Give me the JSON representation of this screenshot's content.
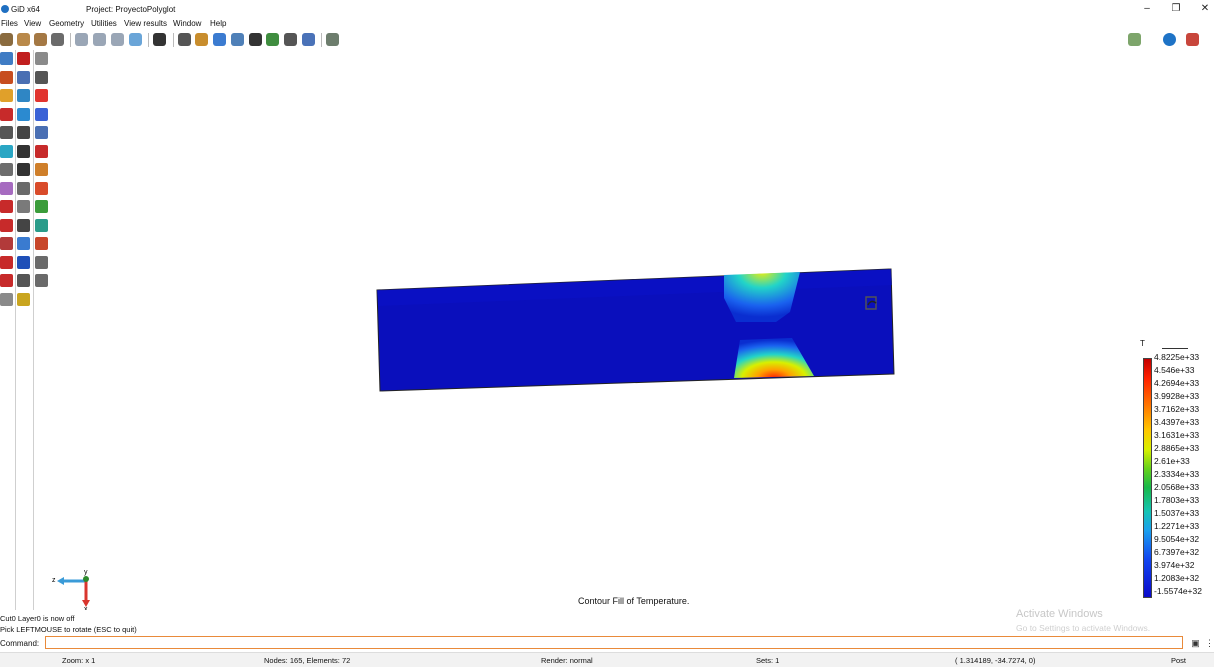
{
  "window": {
    "app_title": "GiD x64",
    "project_title": "Project: ProyectoPolyglot",
    "controls": [
      "–",
      "❐",
      "✕"
    ]
  },
  "menu": [
    "Files",
    "View",
    "Geometry",
    "Utilities",
    "View results",
    "Window",
    "Help"
  ],
  "toolbar_icons": [
    {
      "name": "geometry-view-icon",
      "color": "#8a6b3f"
    },
    {
      "name": "mesh-view-icon",
      "color": "#b9894a"
    },
    {
      "name": "postprocess-view-icon",
      "color": "#a47844"
    },
    {
      "name": "render-icon",
      "color": "#6b6b6b"
    },
    {
      "name": "rotate-trackball-icon",
      "color": "#9aa6b6"
    },
    {
      "name": "rotate-screen-icon",
      "color": "#9aa6b6"
    },
    {
      "name": "pan-icon",
      "color": "#9aa6b6"
    },
    {
      "name": "zoom-frame-icon",
      "color": "#6aa5d8"
    },
    {
      "name": "screenshot-icon",
      "color": "#333333"
    },
    {
      "name": "layers-icon",
      "color": "#555555"
    },
    {
      "name": "contour-icon",
      "color": "#c88d2d"
    },
    {
      "name": "color-map-icon",
      "color": "#3b7bd0"
    },
    {
      "name": "graph-icon",
      "color": "#4f80b8"
    },
    {
      "name": "animation-icon",
      "color": "#333333"
    },
    {
      "name": "sphere-icon",
      "color": "#3f8d3f"
    },
    {
      "name": "movie-icon",
      "color": "#555555"
    },
    {
      "name": "play-icon",
      "color": "#4a72b8"
    },
    {
      "name": "settings-icon",
      "color": "#6d7d6d"
    }
  ],
  "right_toolbar_icons": [
    {
      "name": "background-icon",
      "color": "#7da56b"
    },
    {
      "name": "gid-logo-icon",
      "color": "#1e73c6"
    },
    {
      "name": "user-icon",
      "color": "#c8463c"
    }
  ],
  "left_toolbar_icons": [
    {
      "name": "zoom-icon",
      "color": "#3f7cc4"
    },
    {
      "name": "point-icon",
      "color": "#c11f1f"
    },
    {
      "name": "result-icon",
      "color": "#8a8a8a"
    },
    {
      "name": "edit-icon",
      "color": "#c74d1f"
    },
    {
      "name": "label-icon",
      "color": "#4a6fb3"
    },
    {
      "name": "table-icon",
      "color": "#555555"
    },
    {
      "name": "surface-icon",
      "color": "#e0a02a"
    },
    {
      "name": "cube-icon",
      "color": "#2f86c4"
    },
    {
      "name": "contour-fill-icon",
      "color": "#e1342f"
    },
    {
      "name": "arrow-icon",
      "color": "#c72a2a"
    },
    {
      "name": "mesh-icon",
      "color": "#2b8ad0"
    },
    {
      "name": "contour-lines-icon",
      "color": "#3a62d6"
    },
    {
      "name": "measure-icon",
      "color": "#555555"
    },
    {
      "name": "select-icon",
      "color": "#444444"
    },
    {
      "name": "stream-icon",
      "color": "#4a6fb3"
    },
    {
      "name": "colormap-icon",
      "color": "#2aa6c4"
    },
    {
      "name": "text-icon",
      "color": "#333333"
    },
    {
      "name": "cross-icon",
      "color": "#c72a2a"
    },
    {
      "name": "lines-icon",
      "color": "#6d6d6d"
    },
    {
      "name": "list-icon",
      "color": "#333333"
    },
    {
      "name": "sheet-icon",
      "color": "#cf7f2a"
    },
    {
      "name": "shape-icon",
      "color": "#a66bc0"
    },
    {
      "name": "move-icon",
      "color": "#6a6a6a"
    },
    {
      "name": "rainbow-icon",
      "color": "#d94b2a"
    },
    {
      "name": "line-graph-icon",
      "color": "#c72a2a"
    },
    {
      "name": "vector-icon",
      "color": "#7a7a7a"
    },
    {
      "name": "stripes-icon",
      "color": "#3a9c3a"
    },
    {
      "name": "curve-icon",
      "color": "#c72a2a"
    },
    {
      "name": "axes-icon",
      "color": "#444444"
    },
    {
      "name": "ring-icon",
      "color": "#2a9c8a"
    },
    {
      "name": "pencil-icon",
      "color": "#b23a3a"
    },
    {
      "name": "iso-icon",
      "color": "#3a7bd0"
    },
    {
      "name": "paint-icon",
      "color": "#c8462a"
    },
    {
      "name": "scale-icon",
      "color": "#c72a2a"
    },
    {
      "name": "deform-icon",
      "color": "#1f4fb8"
    },
    {
      "name": "coil-icon",
      "color": "#6a6a6a"
    },
    {
      "name": "bars-icon",
      "color": "#c72a2a"
    },
    {
      "name": "range-icon",
      "color": "#555555"
    },
    {
      "name": "cloud-icon",
      "color": "#6a6a6a"
    },
    {
      "name": "eraser-icon",
      "color": "#8a8a8a"
    },
    {
      "name": "disk-icon",
      "color": "#c9a51f"
    }
  ],
  "viewport": {
    "caption": "Contour Fill of Temperature.",
    "axes_labels": {
      "z": "z",
      "y": "y",
      "x": "x"
    }
  },
  "legend": {
    "title": "T",
    "values": [
      "4.8225e+33",
      "4.546e+33",
      "4.2694e+33",
      "3.9928e+33",
      "3.7162e+33",
      "3.4397e+33",
      "3.1631e+33",
      "2.8865e+33",
      "2.61e+33",
      "2.3334e+33",
      "2.0568e+33",
      "1.7803e+33",
      "1.5037e+33",
      "1.2271e+33",
      "9.5054e+32",
      "6.7397e+32",
      "3.974e+32",
      "1.2083e+32",
      "-1.5574e+32"
    ]
  },
  "messages": [
    "Cut0 Layer0 is now off",
    "Pick LEFTMOUSE to rotate (ESC to quit)"
  ],
  "command": {
    "label": "Command:",
    "value": ""
  },
  "statusbar": {
    "zoom": "Zoom: x 1",
    "nodes": "Nodes: 165, Elements: 72",
    "render": "Render: normal",
    "sets": "Sets: 1",
    "coords": "( 1.314189, -34.7274, 0)",
    "mode": "Post"
  },
  "watermark": {
    "line1": "Activate Windows",
    "line2": "Go to Settings to activate Windows."
  }
}
